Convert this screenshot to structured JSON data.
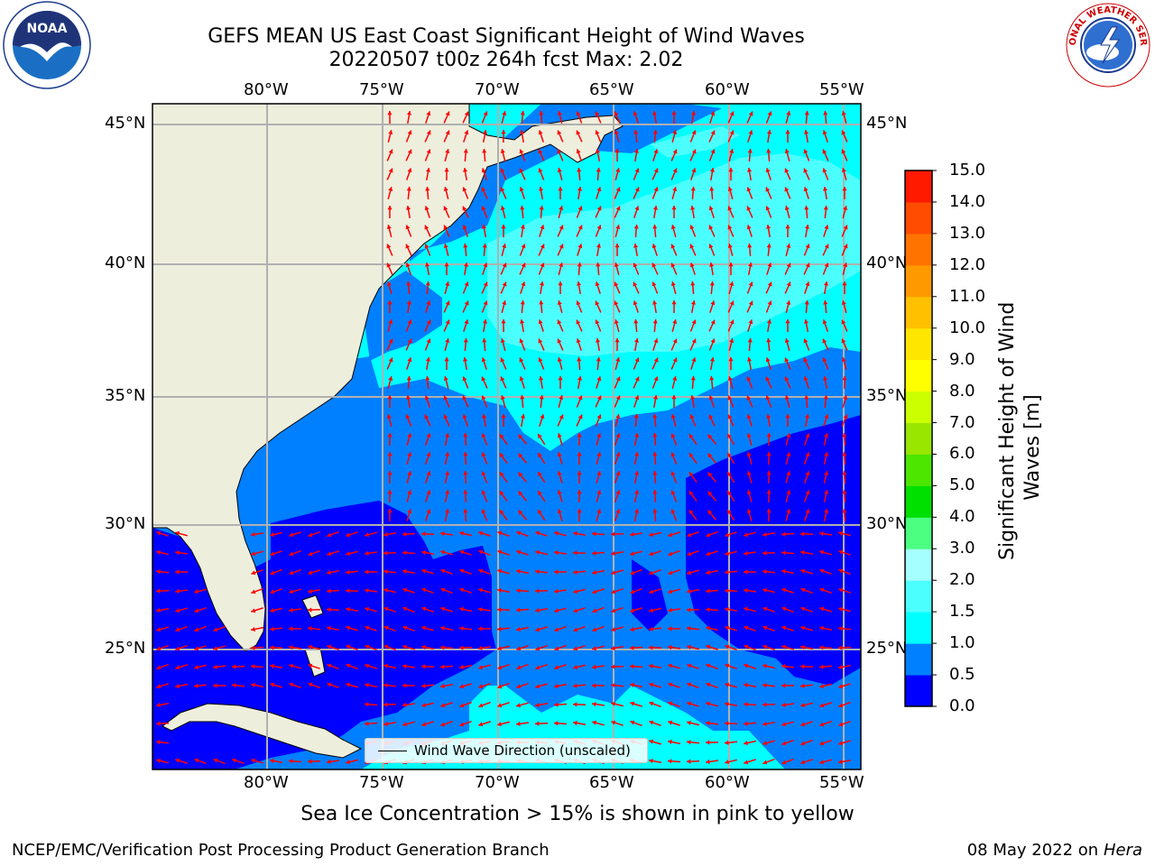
{
  "title": {
    "line1": "GEFS MEAN US East Coast Significant Height of Wind Waves",
    "line2": "20220507 t00z 264h fcst   Max: 2.02"
  },
  "logos": {
    "left": "NOAA",
    "right": "NATIONAL WEATHER SERVICE"
  },
  "map": {
    "lon_labels": [
      "80°W",
      "75°W",
      "70°W",
      "65°W",
      "60°W",
      "55°W"
    ],
    "lat_labels": [
      "45°N",
      "40°N",
      "35°N",
      "30°N",
      "25°N"
    ],
    "lon_range": [
      -85,
      -54.3
    ],
    "lat_range": [
      20.5,
      45.8
    ],
    "legend_label": "Wind Wave Direction (unscaled)",
    "colors": {
      "land": "#eeeedd",
      "wave_0_05": "#0000ff",
      "wave_05_10": "#0080ff",
      "wave_10_15": "#00ffff",
      "wave_15_20": "#4cffff",
      "arrows": "#ff0000",
      "grid": "#b0b0b0"
    }
  },
  "colorbar": {
    "title": "Significant Height of Wind Waves [m]",
    "title_line1": "Significant Height of Wind",
    "title_line2": "Waves [m]",
    "ticks": [
      "15.0",
      "14.0",
      "13.0",
      "12.0",
      "11.0",
      "10.0",
      "9.0",
      "8.0",
      "7.0",
      "6.0",
      "5.0",
      "4.0",
      "3.0",
      "2.0",
      "1.5",
      "1.0",
      "0.5",
      "0.0"
    ],
    "colors": [
      "#0000ff",
      "#0080ff",
      "#00ffff",
      "#4cffff",
      "#a6ffff",
      "#4cff80",
      "#00e000",
      "#4ce600",
      "#99e600",
      "#ccff00",
      "#ffff00",
      "#ffe600",
      "#ffc000",
      "#ff9900",
      "#ff7300",
      "#ff4c00",
      "#ff1a00"
    ]
  },
  "footer": {
    "sea_ice_note": "Sea Ice Concentration > 15% is shown in pink to yellow",
    "branch": "NCEP/EMC/Verification Post Processing Product Generation Branch",
    "date": "08 May 2022 on",
    "host": "Hera"
  }
}
